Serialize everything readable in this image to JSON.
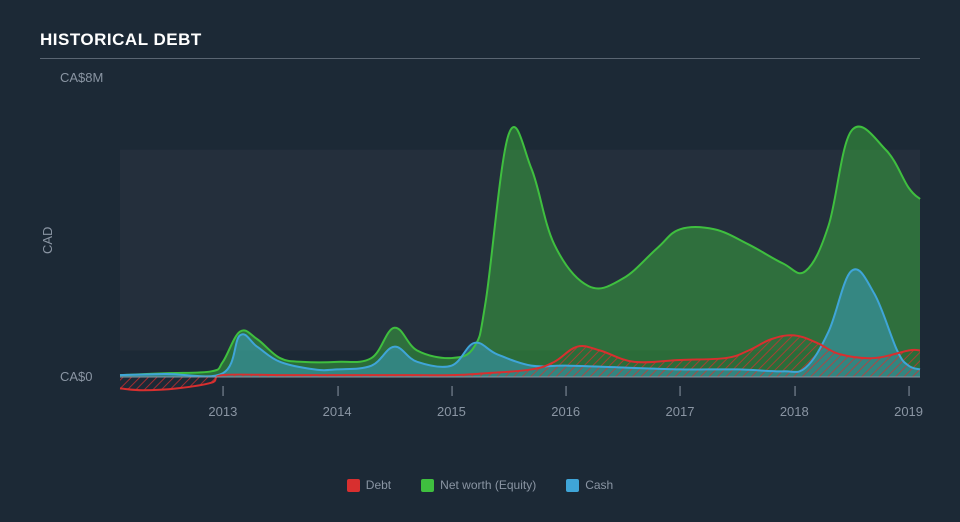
{
  "chart": {
    "type": "area",
    "title": "HISTORICAL DEBT",
    "background_color": "#1c2936",
    "grid_fill_color": "#242f3c",
    "axis_line_color": "#8a95a3",
    "text_color": "#8a95a3",
    "title_color": "#ffffff",
    "title_fontsize": 17,
    "label_fontsize": 13,
    "legend_fontsize": 12,
    "ylabel": "CAD",
    "ylim": [
      -0.4,
      8
    ],
    "y_ticks": [
      {
        "value": 8,
        "label": "CA$8M"
      },
      {
        "value": 0,
        "label": "CA$0"
      }
    ],
    "xlim": [
      2012.1,
      2019.1
    ],
    "x_ticks": [
      {
        "value": 2013,
        "label": "2013"
      },
      {
        "value": 2014,
        "label": "2014"
      },
      {
        "value": 2015,
        "label": "2015"
      },
      {
        "value": 2016,
        "label": "2016"
      },
      {
        "value": 2017,
        "label": "2017"
      },
      {
        "value": 2018,
        "label": "2018"
      },
      {
        "value": 2019,
        "label": "2019"
      }
    ],
    "line_width": 2,
    "fill_opacity": 0.45,
    "series": [
      {
        "name": "Net worth (Equity)",
        "color": "#3fbf3f",
        "fill": "#3fbf3f",
        "x": [
          2012.1,
          2012.5,
          2012.9,
          2013.0,
          2013.15,
          2013.3,
          2013.5,
          2013.7,
          2014.0,
          2014.3,
          2014.5,
          2014.7,
          2015.0,
          2015.2,
          2015.3,
          2015.5,
          2015.7,
          2015.9,
          2016.2,
          2016.5,
          2016.8,
          2017.0,
          2017.3,
          2017.6,
          2017.9,
          2018.1,
          2018.3,
          2018.5,
          2018.8,
          2019.0,
          2019.1
        ],
        "y": [
          0.05,
          0.1,
          0.15,
          0.4,
          1.2,
          1.0,
          0.5,
          0.4,
          0.4,
          0.5,
          1.3,
          0.7,
          0.5,
          0.8,
          2.0,
          6.4,
          5.5,
          3.5,
          2.4,
          2.6,
          3.4,
          3.9,
          3.9,
          3.5,
          3.0,
          2.8,
          4.0,
          6.5,
          6.0,
          5.0,
          4.7
        ]
      },
      {
        "name": "Cash",
        "color": "#3fa5d8",
        "fill": "#3fa5d8",
        "x": [
          2012.1,
          2012.5,
          2013.0,
          2013.15,
          2013.3,
          2013.5,
          2013.8,
          2014.0,
          2014.3,
          2014.5,
          2014.7,
          2015.0,
          2015.2,
          2015.4,
          2015.7,
          2016.0,
          2016.5,
          2017.0,
          2017.5,
          2017.9,
          2018.1,
          2018.3,
          2018.5,
          2018.7,
          2018.9,
          2019.0,
          2019.1
        ],
        "y": [
          0.05,
          0.08,
          0.1,
          1.1,
          0.8,
          0.4,
          0.2,
          0.2,
          0.3,
          0.8,
          0.4,
          0.3,
          0.9,
          0.6,
          0.3,
          0.3,
          0.25,
          0.2,
          0.2,
          0.15,
          0.25,
          1.2,
          2.8,
          2.2,
          0.7,
          0.3,
          0.2
        ]
      },
      {
        "name": "Debt",
        "color": "#d82f2f",
        "fill": "#d82f2f",
        "fill_pattern": "hatch",
        "x": [
          2012.1,
          2012.3,
          2012.6,
          2012.9,
          2013.0,
          2013.5,
          2014.0,
          2014.5,
          2015.0,
          2015.3,
          2015.7,
          2015.9,
          2016.1,
          2016.3,
          2016.6,
          2017.0,
          2017.4,
          2017.6,
          2017.8,
          2018.0,
          2018.2,
          2018.4,
          2018.7,
          2019.0,
          2019.1
        ],
        "y": [
          -0.3,
          -0.35,
          -0.3,
          -0.15,
          0.05,
          0.05,
          0.05,
          0.05,
          0.05,
          0.1,
          0.2,
          0.4,
          0.8,
          0.7,
          0.4,
          0.45,
          0.5,
          0.7,
          1.0,
          1.1,
          0.9,
          0.6,
          0.5,
          0.7,
          0.7
        ]
      }
    ],
    "legend": [
      {
        "label": "Debt",
        "color": "#d82f2f"
      },
      {
        "label": "Net worth (Equity)",
        "color": "#3fbf3f"
      },
      {
        "label": "Cash",
        "color": "#3fa5d8"
      }
    ]
  }
}
